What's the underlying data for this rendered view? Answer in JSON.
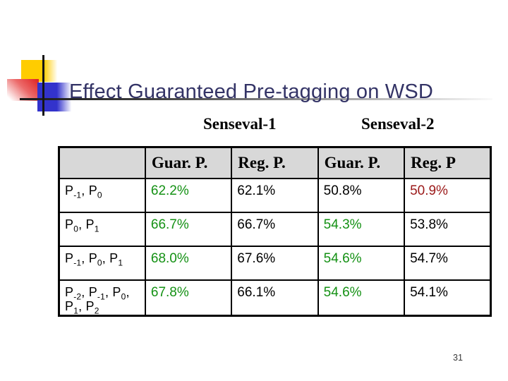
{
  "slide": {
    "title": "Effect Guaranteed Pre-tagging on WSD",
    "page_number": "31"
  },
  "group_headers": [
    {
      "label": "Senseval-1"
    },
    {
      "label": "Senseval-2"
    }
  ],
  "colors": {
    "title_navy": "#333366",
    "value_green": "#149114",
    "value_red": "#9B1919",
    "value_black": "#000000",
    "table_header_bg": "#D8D8D8",
    "accent_yellow": "#FFCC00",
    "accent_blue": "#3333CC",
    "accent_red": "#E02828"
  },
  "chart_data": {
    "type": "table",
    "title": "Effect Guaranteed Pre-tagging on WSD",
    "group_headers": [
      "Senseval-1",
      "Senseval-2"
    ],
    "column_headers": [
      "",
      "Guar. P.",
      "Reg. P.",
      "Guar. P.",
      "Reg. P"
    ],
    "rows": [
      {
        "label": "P_{-1}, P_{0}",
        "cells": [
          {
            "value": "62.2%",
            "color": "green"
          },
          {
            "value": "62.1%",
            "color": "black"
          },
          {
            "value": "50.8%",
            "color": "black"
          },
          {
            "value": "50.9%",
            "color": "red"
          }
        ]
      },
      {
        "label": "P_{0}, P_{1}",
        "cells": [
          {
            "value": "66.7%",
            "color": "green"
          },
          {
            "value": "66.7%",
            "color": "black"
          },
          {
            "value": "54.3%",
            "color": "green"
          },
          {
            "value": "53.8%",
            "color": "black"
          }
        ]
      },
      {
        "label": "P_{-1}, P_{0}, P_{1}",
        "cells": [
          {
            "value": "68.0%",
            "color": "green"
          },
          {
            "value": "67.6%",
            "color": "black"
          },
          {
            "value": "54.6%",
            "color": "green"
          },
          {
            "value": "54.7%",
            "color": "black"
          }
        ]
      },
      {
        "label": "P_{-2}, P_{-1}, P_{0}, P_{1}, P_{2}",
        "cells": [
          {
            "value": "67.8%",
            "color": "green"
          },
          {
            "value": "66.1%",
            "color": "black"
          },
          {
            "value": "54.6%",
            "color": "green"
          },
          {
            "value": "54.1%",
            "color": "black"
          }
        ]
      }
    ]
  }
}
